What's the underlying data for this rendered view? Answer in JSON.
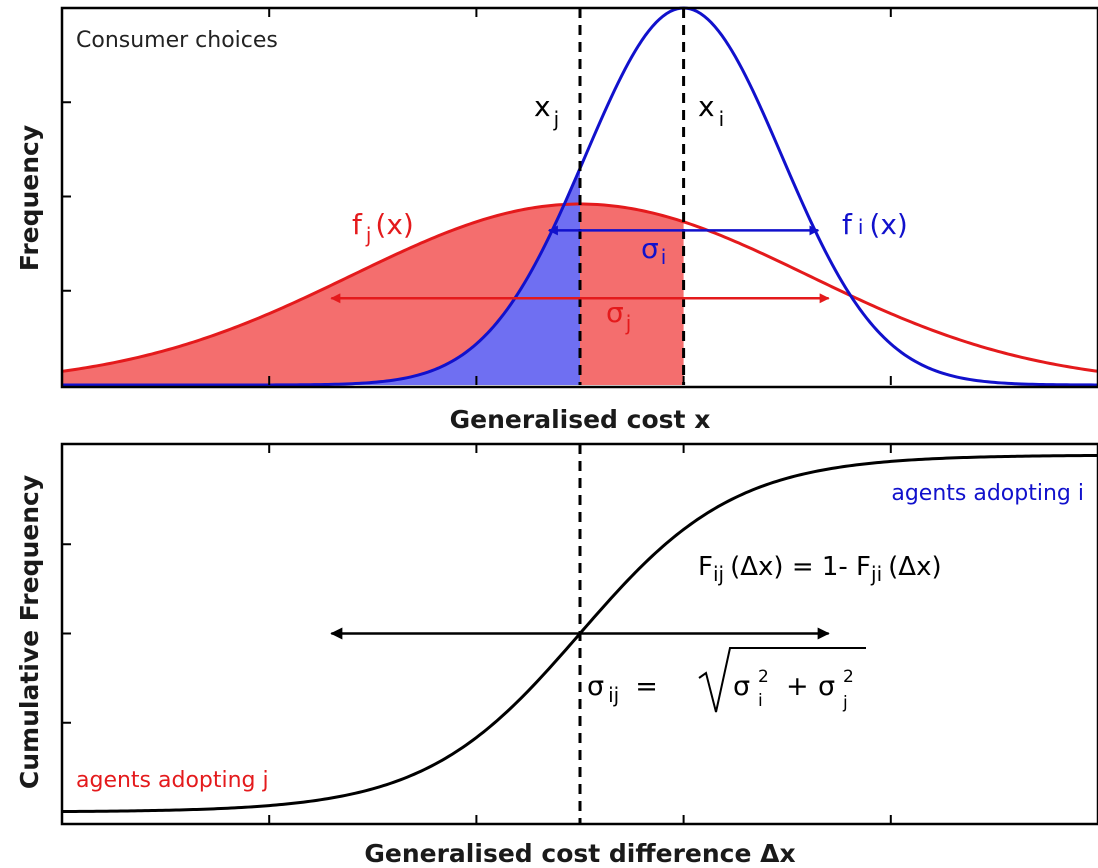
{
  "chart_data": [
    {
      "type": "line",
      "panel": "top",
      "title": "",
      "annotation": "Consumer choices",
      "xlabel": "Generalised cost x",
      "ylabel": "Frequency",
      "xlim": [
        0,
        10
      ],
      "ylim": [
        0,
        1
      ],
      "grid": false,
      "series": [
        {
          "name": "f_j(x)",
          "color": "#e41a1c",
          "kind": "gaussian",
          "mean": 5,
          "sigma": 2.2,
          "peak": 0.48
        },
        {
          "name": "f_i(x)",
          "color": "#1111cc",
          "kind": "gaussian",
          "mean": 6,
          "sigma": 0.95,
          "peak": 1.0
        }
      ],
      "vlines": [
        {
          "x": 5,
          "label": "x",
          "sub": "j"
        },
        {
          "x": 6,
          "label": "x",
          "sub": "i"
        }
      ],
      "shaded": [
        {
          "under": "f_j(x)",
          "x_range": [
            0,
            5
          ],
          "color": "#f46e6e"
        },
        {
          "under": "f_i(x)",
          "x_range": [
            0,
            5
          ],
          "color": "#6f6ff2"
        },
        {
          "under": "f_j(x)",
          "x_range": [
            5,
            6
          ],
          "color": "#f46e6e"
        }
      ],
      "arrows": [
        {
          "label": "σ",
          "sub": "i",
          "color": "#1111cc",
          "x": [
            4.7,
            7.3
          ],
          "y": 0.41
        },
        {
          "label": "σ",
          "sub": "j",
          "color": "#e41a1c",
          "x": [
            2.6,
            7.4
          ],
          "y": 0.23
        }
      ],
      "labels": [
        {
          "text": "f",
          "sub": "j",
          "tail": "(x)",
          "color": "#e41a1c"
        },
        {
          "text": "f",
          "sub": "i",
          "tail": "(x)",
          "color": "#1111cc"
        }
      ]
    },
    {
      "type": "line",
      "panel": "bottom",
      "title": "",
      "xlabel": "Generalised cost difference Δx",
      "ylabel": "Cumulative Frequency",
      "xlim": [
        -5,
        5
      ],
      "ylim": [
        0,
        1
      ],
      "grid": false,
      "series": [
        {
          "name": "F_ij(Δx)",
          "color": "#000000",
          "kind": "logistic",
          "center": 0,
          "scale": 0.75
        }
      ],
      "vlines": [
        {
          "x": 0
        }
      ],
      "arrows": [
        {
          "color": "#000000",
          "x": [
            -2.4,
            2.4
          ],
          "y": 0.5
        }
      ],
      "annotations": [
        {
          "text": "agents adopting i",
          "color": "#1111cc"
        },
        {
          "text": "agents adopting j",
          "color": "#e41a1c"
        },
        {
          "text": "F",
          "sub": "ij",
          "rest": "(Δx) = 1- F",
          "sub2": "ji",
          "tail": "(Δx)",
          "color": "#000000"
        },
        {
          "text": "σ",
          "sub": "ij",
          "equals": "=",
          "sigma": "σ",
          "sup": "2",
          "sub_i": "i",
          "plus": "+",
          "sub_j": "j",
          "color": "#000000"
        }
      ]
    }
  ]
}
